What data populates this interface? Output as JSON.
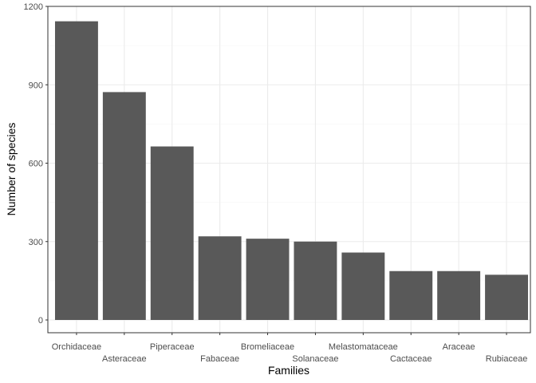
{
  "chart_data": {
    "type": "bar",
    "categories": [
      "Orchidaceae",
      "Asteraceae",
      "Piperaceae",
      "Fabaceae",
      "Bromeliaceae",
      "Solanaceae",
      "Melastomataceae",
      "Cactaceae",
      "Araceae",
      "Rubiaceae"
    ],
    "values": [
      1143,
      872,
      664,
      320,
      311,
      300,
      258,
      187,
      187,
      173
    ],
    "xlabel": "Families",
    "ylabel": "Number of species",
    "ylim": [
      0,
      1200
    ],
    "yticks": [
      "0",
      "300",
      "600",
      "900",
      "1200"
    ],
    "grid": true,
    "colors": {
      "bar": "#595959",
      "panel_border": "#333333",
      "grid_major": "#ebebeb",
      "grid_minor": "#f5f5f5"
    }
  }
}
